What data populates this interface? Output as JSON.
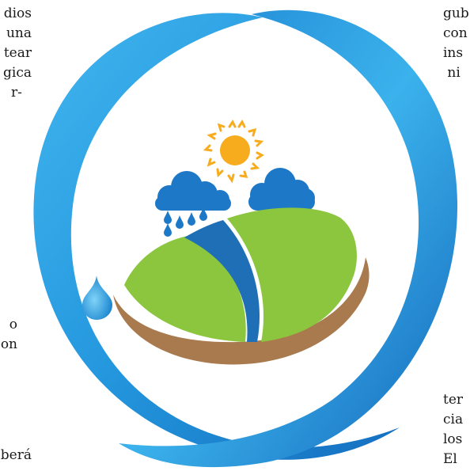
{
  "left_text": {
    "top": [
      "dios",
      "una",
      "tear",
      "gica",
      "r-"
    ],
    "middle": [
      "o",
      "on"
    ],
    "bottom": [
      "berá"
    ]
  },
  "right_text": {
    "top": [
      "gub",
      "con",
      "ins",
      " ni"
    ],
    "bottom": [
      "ter",
      "cia",
      "los",
      "El"
    ]
  },
  "colors": {
    "ring_blue": "#1d8bd6",
    "ring_light": "#3fb4ee",
    "sun": "#f7ac1e",
    "cloud": "#1e78c8",
    "field_green": "#8cc63f",
    "river": "#1f6fb7",
    "soil": "#a87a4e"
  },
  "icons": [
    "sun-icon",
    "cloud-icon",
    "raindrop-icon",
    "water-drop-icon"
  ]
}
